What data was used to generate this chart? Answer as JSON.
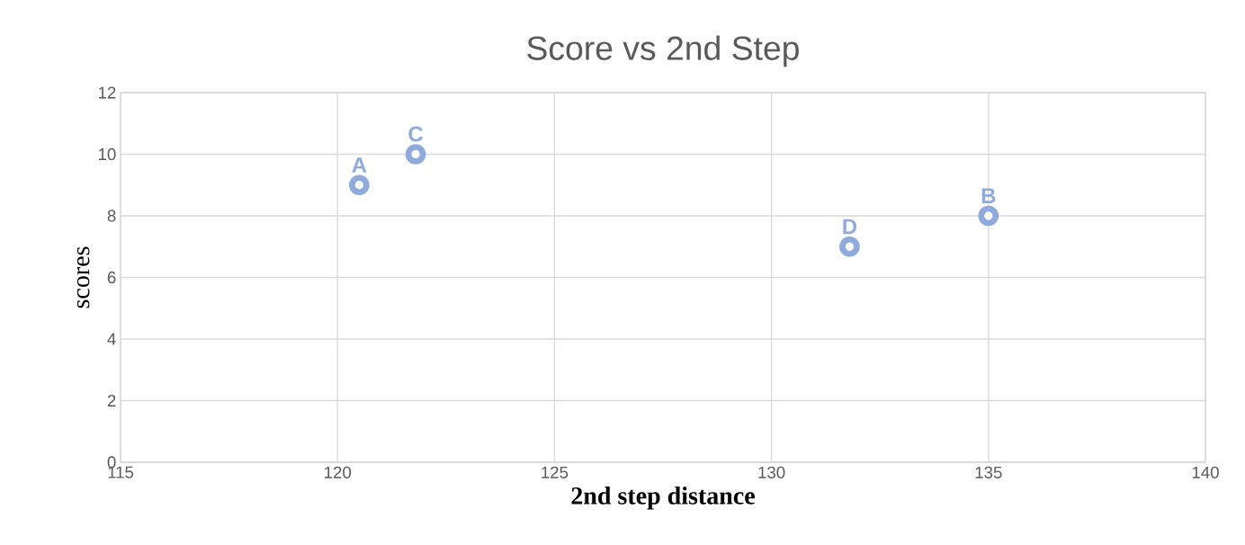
{
  "chart_data": {
    "type": "scatter",
    "title": "Score vs 2nd Step",
    "xlabel": "2nd step distance",
    "ylabel": "scores",
    "series": [
      {
        "color": "#8faadc",
        "x": [
          120.5,
          135.0,
          121.8,
          131.8
        ],
        "values": [
          9,
          8,
          10,
          7
        ]
      }
    ],
    "annotations": [
      {
        "text": "A",
        "x": 120.5,
        "y": 9
      },
      {
        "text": "B",
        "x": 135.0,
        "y": 8
      },
      {
        "text": "C",
        "x": 121.8,
        "y": 10
      },
      {
        "text": "D",
        "x": 131.8,
        "y": 7
      }
    ],
    "xlim": [
      115,
      140
    ],
    "xticks": [
      115,
      120,
      125,
      130,
      135,
      140
    ],
    "ylim": [
      0,
      12
    ],
    "yticks": [
      0,
      2,
      4,
      6,
      8,
      10,
      12
    ],
    "grid": true,
    "marker": "circle"
  }
}
